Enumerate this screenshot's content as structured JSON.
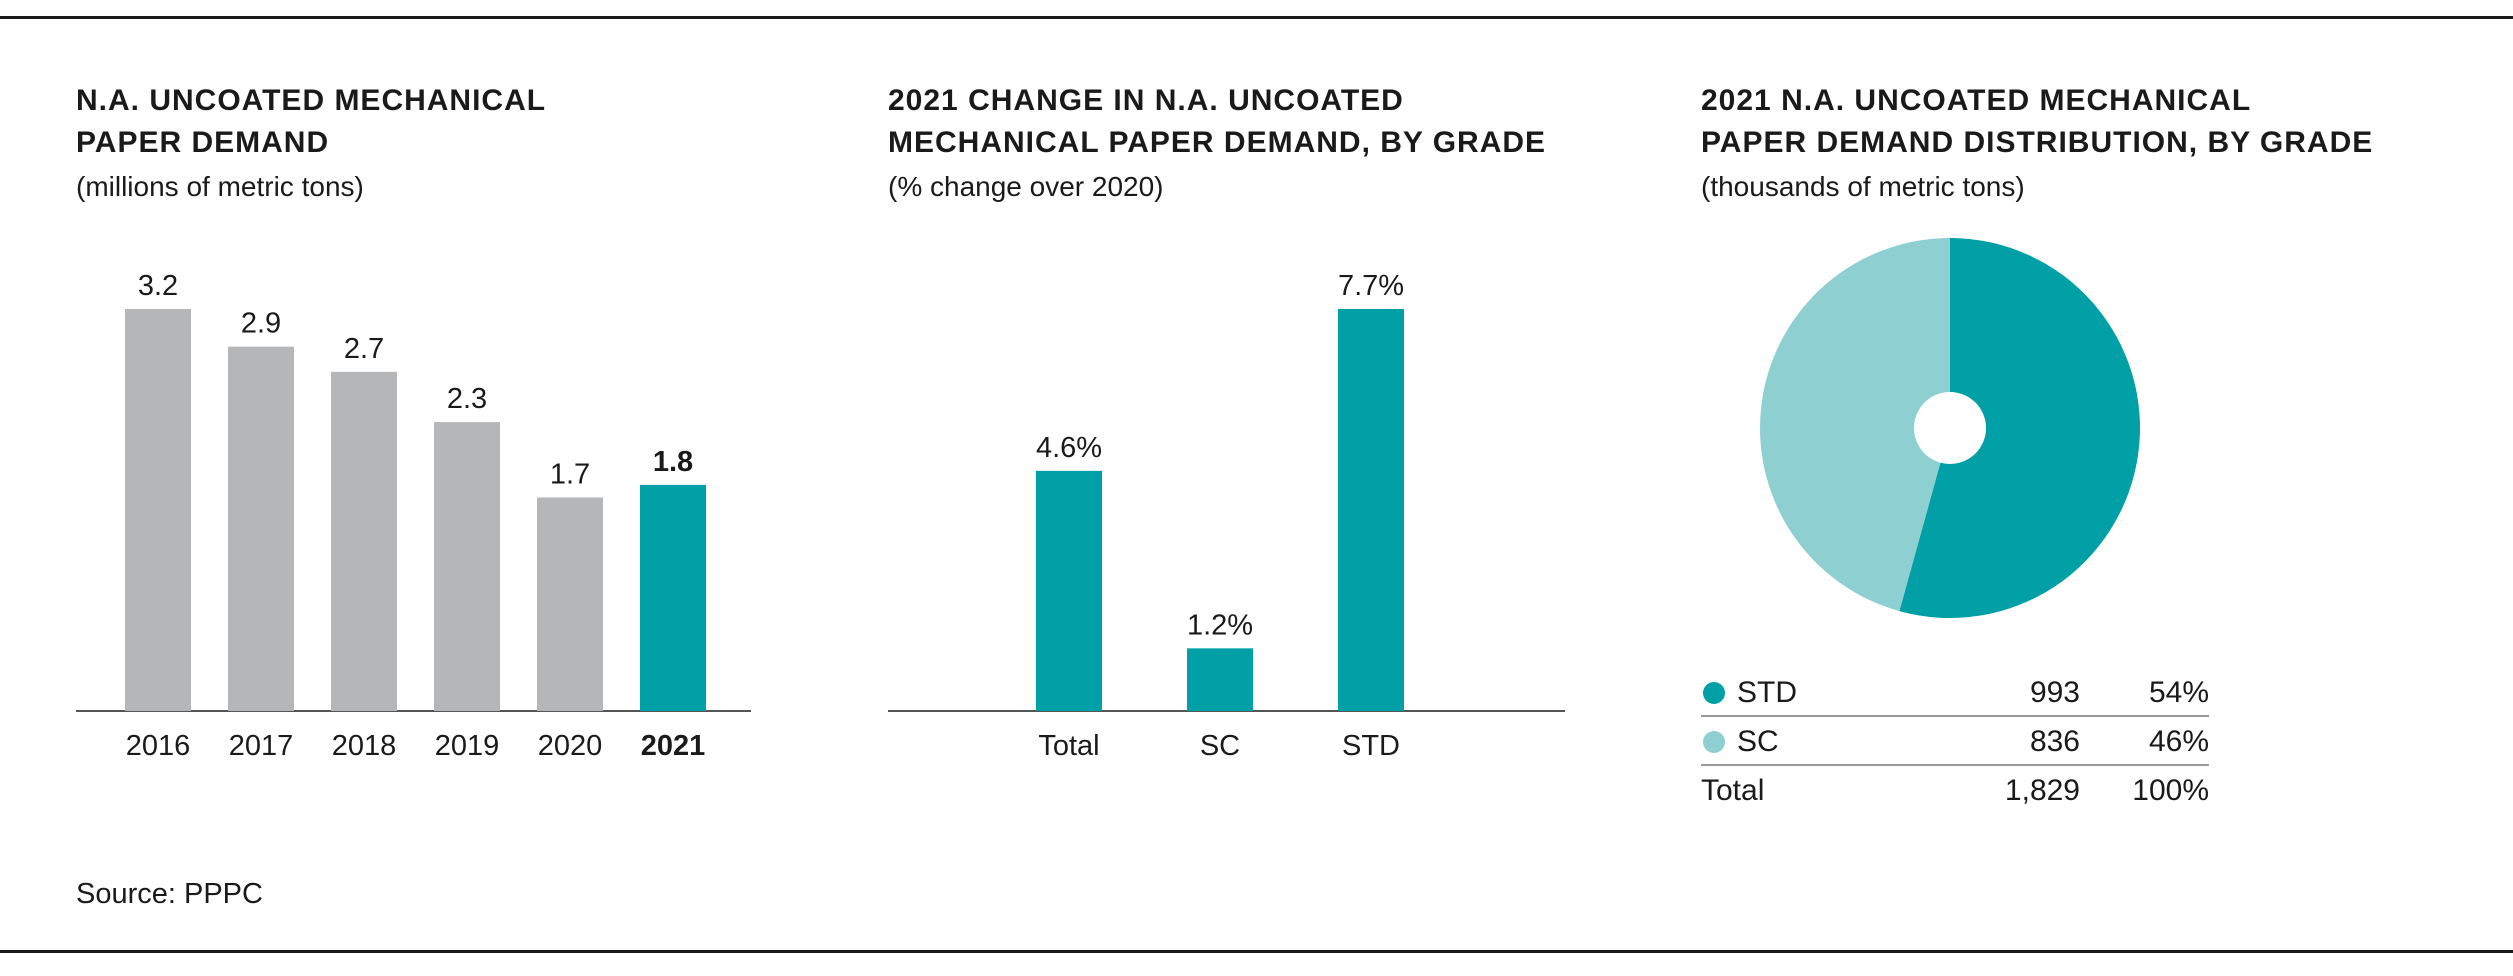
{
  "colors": {
    "teal": "#00a0a6",
    "light_teal": "#8ecfd2",
    "gray": "#b5b6b8",
    "axis": "#555555"
  },
  "source": "Source: PPPC",
  "chart_data": [
    {
      "type": "bar",
      "title": "N.A. UNCOATED MECHANICAL PAPER DEMAND",
      "title_lines": [
        "N.A. UNCOATED MECHANICAL",
        "PAPER DEMAND"
      ],
      "subtitle": "(millions of metric tons)",
      "categories": [
        "2016",
        "2017",
        "2018",
        "2019",
        "2020",
        "2021"
      ],
      "values": [
        3.2,
        2.9,
        2.7,
        2.3,
        1.7,
        1.8
      ],
      "labels": [
        "3.2",
        "2.9",
        "2.7",
        "2.3",
        "1.7",
        "1.8"
      ],
      "highlight": "2021",
      "ylim": [
        0,
        3.2
      ],
      "grid": false
    },
    {
      "type": "bar",
      "title": "2021 CHANGE IN N.A. UNCOATED MECHANICAL PAPER DEMAND, BY GRADE",
      "title_lines": [
        "2021 CHANGE IN N.A. UNCOATED",
        "MECHANICAL PAPER DEMAND, BY GRADE"
      ],
      "subtitle": "(% change over 2020)",
      "categories": [
        "Total",
        "SC",
        "STD"
      ],
      "values": [
        4.6,
        1.2,
        7.7
      ],
      "labels": [
        "4.6%",
        "1.2%",
        "7.7%"
      ],
      "ylim": [
        0,
        7.7
      ],
      "grid": false
    },
    {
      "type": "pie",
      "title": "2021 N.A. UNCOATED MECHANICAL PAPER DEMAND DISTRIBUTION, BY GRADE",
      "title_lines": [
        "2021 N.A. UNCOATED MECHANICAL",
        "PAPER DEMAND DISTRIBUTION, BY GRADE"
      ],
      "subtitle": "(thousands of metric tons)",
      "slices": [
        {
          "label": "STD",
          "value": 993,
          "value_label": "993",
          "percent": "54%",
          "color": "#00a0a6"
        },
        {
          "label": "SC",
          "value": 836,
          "value_label": "836",
          "percent": "46%",
          "color": "#8ecfd2"
        }
      ],
      "total": {
        "label": "Total",
        "value_label": "1,829",
        "percent": "100%"
      }
    }
  ]
}
